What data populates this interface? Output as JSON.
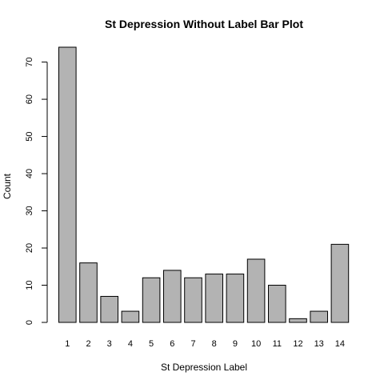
{
  "chart_data": {
    "type": "bar",
    "title": "St Depression Without Label Bar Plot",
    "xlabel": "St Depression Label",
    "ylabel": "Count",
    "categories": [
      "1",
      "2",
      "3",
      "4",
      "5",
      "6",
      "7",
      "8",
      "9",
      "10",
      "11",
      "12",
      "13",
      "14"
    ],
    "values": [
      74,
      16,
      7,
      3,
      12,
      14,
      12,
      13,
      13,
      17,
      10,
      1,
      3,
      21
    ],
    "ylim": [
      0,
      74
    ],
    "yticks": [
      0,
      10,
      20,
      30,
      40,
      50,
      60,
      70
    ],
    "bar_color": "#b3b3b3",
    "grid": false,
    "legend": "none"
  }
}
